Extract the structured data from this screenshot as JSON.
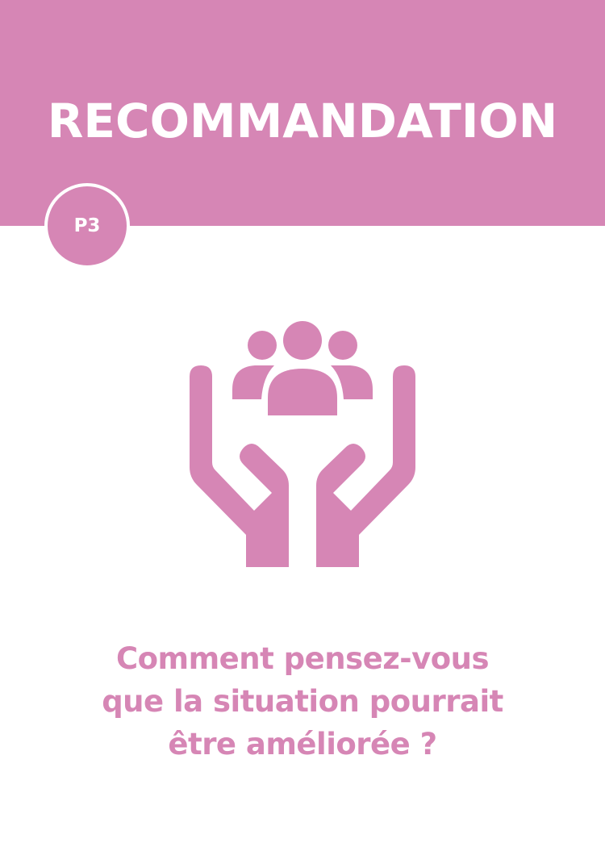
{
  "colors": {
    "accent": "#d686b5",
    "background": "#ffffff",
    "header_text": "#ffffff"
  },
  "header": {
    "title": "RECOMMANDATION"
  },
  "badge": {
    "label": "P3"
  },
  "illustration": {
    "icon": "hands-holding-people-icon"
  },
  "question": {
    "lines": [
      "Comment pensez-vous",
      "que la situation pourrait",
      "être améliorée ?"
    ]
  }
}
